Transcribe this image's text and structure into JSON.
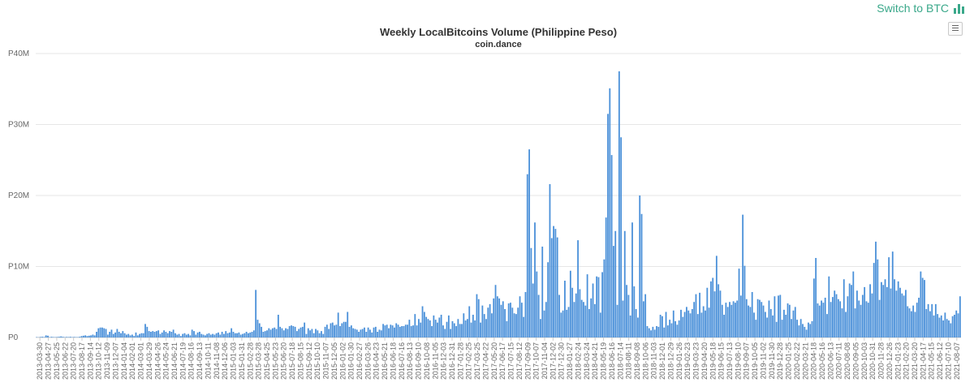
{
  "header": {
    "switch_label": "Switch to BTC",
    "switch_icon": "bar-chart-icon",
    "accent_color": "#3aa88a"
  },
  "menu": {
    "icon": "hamburger-menu-icon"
  },
  "chart_data": {
    "type": "bar",
    "title": "Weekly LocalBitcoins Volume (Philippine Peso)",
    "subtitle": "coin.dance",
    "xlabel": "",
    "ylabel": "",
    "ylim": [
      0,
      40000000
    ],
    "y_ticks": [
      0,
      10000000,
      20000000,
      30000000,
      40000000
    ],
    "y_tick_labels": [
      "P0",
      "P10M",
      "P20M",
      "P30M",
      "P40M"
    ],
    "bar_color": "#4a90d9",
    "grid": true,
    "legend": "none",
    "x_tick_labels": [
      "2013-03-30",
      "2013-04-27",
      "2013-05-25",
      "2013-06-22",
      "2013-07-20",
      "2013-08-17",
      "2013-09-14",
      "2013-10-12",
      "2013-11-09",
      "2013-12-07",
      "2014-01-04",
      "2014-02-01",
      "2014-03-01",
      "2014-03-29",
      "2014-04-26",
      "2014-05-24",
      "2014-06-21",
      "2014-07-19",
      "2014-08-16",
      "2014-09-13",
      "2014-10-11",
      "2014-11-08",
      "2014-12-06",
      "2015-01-03",
      "2015-01-31",
      "2015-02-28",
      "2015-03-28",
      "2015-04-25",
      "2015-05-23",
      "2015-06-20",
      "2015-07-18",
      "2015-08-15",
      "2015-09-12",
      "2015-10-10",
      "2015-11-07",
      "2015-12-05",
      "2016-01-02",
      "2016-01-30",
      "2016-02-27",
      "2016-03-26",
      "2016-04-23",
      "2016-05-21",
      "2016-06-18",
      "2016-07-16",
      "2016-08-13",
      "2016-09-10",
      "2016-10-08",
      "2016-11-05",
      "2016-12-03",
      "2016-12-31",
      "2017-01-28",
      "2017-02-25",
      "2017-03-25",
      "2017-04-22",
      "2017-05-20",
      "2017-06-17",
      "2017-07-15",
      "2017-08-12",
      "2017-09-09",
      "2017-10-07",
      "2017-11-04",
      "2017-12-02",
      "2017-12-30",
      "2018-01-27",
      "2018-02-24",
      "2018-03-24",
      "2018-04-21",
      "2018-05-19",
      "2018-06-16",
      "2018-07-14",
      "2018-08-11",
      "2018-09-08",
      "2018-10-06",
      "2018-11-03",
      "2018-12-01",
      "2018-12-29",
      "2019-01-26",
      "2019-02-23",
      "2019-03-23",
      "2019-04-20",
      "2019-05-18",
      "2019-06-15",
      "2019-07-13",
      "2019-08-10",
      "2019-09-07",
      "2019-10-05",
      "2019-11-02",
      "2019-11-30",
      "2019-12-28",
      "2020-01-25",
      "2020-02-22",
      "2020-03-21",
      "2020-04-18",
      "2020-05-16",
      "2020-06-13",
      "2020-07-11",
      "2020-08-08",
      "2020-09-05",
      "2020-10-03",
      "2020-10-31",
      "2020-11-28",
      "2020-12-26",
      "2021-01-23",
      "2021-02-20",
      "2021-03-20",
      "2021-04-17",
      "2021-05-15",
      "2021-06-12",
      "2021-07-10",
      "2021-08-07"
    ],
    "values": [
      0.05,
      0.03,
      0.08,
      0.1,
      0.07,
      0.3,
      0.25,
      0.05,
      0.1,
      0.06,
      0.05,
      0.08,
      0.1,
      0.15,
      0.1,
      0.05,
      0.08,
      0.07,
      0.1,
      0.05,
      0.08,
      0.06,
      0.05,
      0.1,
      0.2,
      0.25,
      0.3,
      0.2,
      0.25,
      0.3,
      0.4,
      0.3,
      0.8,
      1.3,
      1.4,
      1.4,
      1.3,
      1.2,
      0.4,
      0.8,
      1.1,
      0.5,
      0.7,
      1.2,
      0.8,
      0.6,
      0.9,
      0.6,
      0.4,
      0.5,
      0.3,
      0.4,
      0.2,
      0.7,
      0.3,
      0.5,
      0.6,
      0.6,
      1.9,
      1.5,
      0.9,
      0.8,
      0.9,
      0.8,
      0.9,
      1.0,
      0.5,
      0.7,
      1.0,
      0.8,
      0.6,
      0.9,
      0.8,
      1.1,
      0.6,
      0.4,
      0.5,
      0.2,
      0.5,
      0.6,
      0.4,
      0.5,
      0.3,
      1.1,
      0.9,
      0.4,
      0.7,
      0.8,
      0.5,
      0.4,
      0.3,
      0.5,
      0.6,
      0.4,
      0.5,
      0.4,
      0.6,
      0.7,
      0.4,
      0.8,
      0.5,
      0.9,
      0.6,
      0.7,
      1.3,
      0.8,
      0.6,
      0.6,
      0.7,
      0.4,
      0.5,
      0.6,
      0.8,
      0.6,
      0.7,
      0.8,
      1.0,
      6.7,
      2.5,
      2.0,
      1.5,
      0.8,
      0.9,
      1.0,
      1.3,
      1.1,
      1.3,
      1.4,
      1.2,
      3.2,
      1.5,
      1.3,
      1.0,
      1.3,
      1.2,
      1.6,
      1.7,
      1.6,
      1.5,
      0.9,
      1.2,
      1.4,
      1.5,
      2.1,
      0.5,
      1.3,
      1.0,
      1.2,
      0.6,
      1.2,
      1.0,
      0.6,
      0.9,
      0.5,
      1.5,
      1.8,
      1.2,
      2.0,
      2.1,
      1.7,
      1.8,
      3.5,
      1.6,
      2.0,
      2.2,
      2.2,
      3.6,
      1.5,
      1.7,
      1.3,
      1.2,
      1.1,
      0.8,
      1.1,
      1.2,
      1.4,
      0.8,
      1.4,
      1.1,
      0.7,
      1.4,
      1.5,
      0.8,
      1.1,
      1.0,
      1.9,
      1.7,
      1.8,
      1.3,
      1.8,
      1.7,
      1.4,
      2.0,
      1.8,
      1.5,
      1.6,
      1.6,
      1.8,
      1.8,
      2.5,
      1.6,
      1.7,
      3.3,
      1.7,
      2.6,
      2.1,
      4.4,
      3.6,
      2.9,
      2.6,
      2.4,
      1.6,
      3.1,
      2.5,
      2.1,
      2.8,
      3.2,
      1.7,
      1.2,
      2.2,
      3.1,
      1.2,
      2.3,
      2.0,
      1.6,
      2.6,
      1.9,
      1.9,
      3.4,
      2.4,
      2.6,
      4.4,
      2.1,
      3.2,
      2.4,
      6.1,
      5.4,
      2.1,
      4.5,
      3.3,
      2.6,
      4.2,
      4.7,
      3.4,
      5.5,
      7.4,
      5.8,
      5.5,
      4.6,
      5.1,
      4.0,
      2.3,
      4.8,
      4.9,
      4.2,
      3.4,
      3.3,
      4.2,
      5.8,
      4.9,
      2.9,
      6.4,
      23.0,
      26.5,
      12.6,
      7.6,
      16.2,
      9.3,
      6.0,
      2.6,
      12.8,
      3.8,
      5.0,
      10.6,
      21.6,
      14.0,
      15.7,
      15.3,
      14.1,
      6.0,
      3.5,
      3.8,
      8.0,
      3.9,
      4.3,
      9.4,
      7.0,
      5.0,
      6.2,
      13.7,
      6.8,
      5.3,
      5.0,
      4.5,
      8.9,
      4.0,
      5.5,
      7.6,
      4.7,
      8.6,
      8.5,
      3.5,
      9.2,
      11.0,
      16.9,
      31.5,
      35.1,
      25.7,
      12.9,
      15.0,
      4.6,
      37.5,
      28.2,
      5.2,
      15.0,
      7.4,
      6.0,
      3.1,
      16.2,
      7.2,
      4.0,
      2.8,
      20.0,
      17.4,
      5.1,
      6.1,
      1.6,
      1.3,
      1.0,
      1.5,
      1.1,
      1.6,
      1.5,
      3.2,
      3.0,
      1.4,
      3.6,
      1.7,
      2.5,
      2.0,
      3.8,
      2.3,
      1.8,
      2.4,
      3.9,
      2.9,
      3.6,
      4.3,
      3.8,
      3.4,
      4.0,
      5.0,
      6.1,
      3.3,
      6.3,
      3.5,
      4.4,
      3.8,
      7.0,
      4.2,
      7.9,
      8.4,
      6.5,
      11.5,
      7.5,
      6.6,
      4.6,
      3.2,
      4.9,
      4.3,
      5.0,
      4.6,
      5.1,
      4.9,
      5.2,
      9.7,
      5.9,
      17.3,
      10.1,
      5.4,
      4.5,
      4.3,
      6.4,
      3.5,
      2.5,
      5.4,
      5.3,
      5.0,
      4.5,
      3.6,
      2.8,
      5.2,
      4.0,
      3.1,
      5.8,
      2.2,
      5.9,
      6.0,
      2.5,
      3.9,
      3.2,
      4.8,
      4.6,
      2.6,
      3.8,
      4.3,
      2.5,
      1.7,
      2.6,
      1.9,
      1.5,
      1.1,
      2.1,
      1.9,
      2.3,
      8.3,
      11.2,
      4.8,
      4.5,
      5.2,
      4.9,
      5.6,
      3.3,
      8.6,
      5.0,
      5.7,
      6.6,
      6.1,
      5.4,
      5.1,
      4.1,
      8.2,
      3.6,
      5.8,
      7.6,
      7.4,
      9.3,
      4.1,
      6.6,
      5.2,
      4.6,
      6.0,
      7.1,
      5.1,
      4.9,
      7.5,
      6.2,
      10.5,
      13.5,
      11.0,
      5.3,
      7.8,
      7.4,
      8.2,
      7.1,
      11.3,
      6.9,
      12.1,
      8.2,
      6.6,
      7.9,
      7.0,
      6.2,
      5.9,
      6.7,
      4.4,
      4.1,
      3.7,
      4.5,
      3.6,
      4.9,
      5.6,
      9.3,
      8.4,
      8.1,
      4.0,
      4.7,
      3.7,
      4.7,
      3.1,
      4.7,
      3.3,
      2.8,
      3.1,
      2.4,
      3.5,
      2.6,
      2.4,
      2.0,
      3.0,
      3.2,
      3.8,
      3.4,
      5.8
    ]
  }
}
